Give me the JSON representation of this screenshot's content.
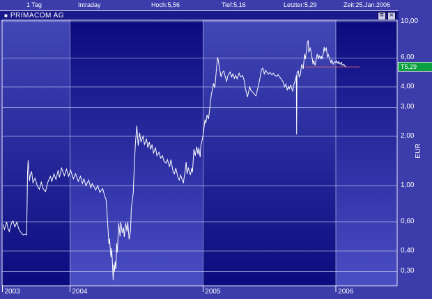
{
  "window": {
    "title": "PRIMACOM AG",
    "title_icon": "■",
    "buttons": {
      "properties": "≡",
      "close": "✕"
    }
  },
  "header": {
    "items": [
      {
        "label": "1 Tag"
      },
      {
        "label": "Intraday"
      },
      {
        "label": "Hoch:5,56"
      },
      {
        "label": "Tief:5,16"
      },
      {
        "label": "Letzter:5,29"
      },
      {
        "label": "Zeit:25.Jan.2006"
      }
    ]
  },
  "last_price_tag": {
    "label": "T5,29",
    "price": 5.29,
    "color": "#0aa041"
  },
  "y_axis_unit": "EUR",
  "colors": {
    "margin_background": "#3c3cab",
    "titlebar_background": "#1a1a8c",
    "band_light": "#4247b6",
    "band_dark": "#0b0b7e",
    "band_light_bottom": "#4b4fc4",
    "gridline": "rgba(205,210,245,0.6)",
    "plot_border": "#e8e8f0",
    "price_line": "#ffffff",
    "reference_line": "#e06a6a",
    "tag_green": "#0aa041"
  },
  "chart_data": {
    "type": "line",
    "title": "PRIMACOM AG",
    "series_name": "PrimaCom AG Kurs (EUR)",
    "y_scale": "log",
    "x_range": [
      2003.49,
      2006.46
    ],
    "y_range": [
      0.245,
      10.2
    ],
    "y_ticks": [
      {
        "value": 10.0,
        "label": "10,00"
      },
      {
        "value": 6.0,
        "label": "6,00"
      },
      {
        "value": 4.0,
        "label": "4,00"
      },
      {
        "value": 3.0,
        "label": "3,00"
      },
      {
        "value": 2.0,
        "label": "2,00"
      },
      {
        "value": 1.0,
        "label": "1,00"
      },
      {
        "value": 0.6,
        "label": "0,60"
      },
      {
        "value": 0.4,
        "label": "0,40"
      },
      {
        "value": 0.3,
        "label": "0,30"
      }
    ],
    "x_ticks": [
      {
        "value": 2003,
        "label": "2003"
      },
      {
        "value": 2004,
        "label": "2004"
      },
      {
        "value": 2005,
        "label": "2005"
      },
      {
        "value": 2006,
        "label": "2006"
      }
    ],
    "reference_line": {
      "price": 5.29,
      "x_start": 2005.764,
      "x_end": 2006.178
    },
    "points": [
      [
        2003.497,
        0.58
      ],
      [
        2003.508,
        0.54
      ],
      [
        2003.524,
        0.6
      ],
      [
        2003.534,
        0.55
      ],
      [
        2003.544,
        0.525
      ],
      [
        2003.56,
        0.59
      ],
      [
        2003.571,
        0.61
      ],
      [
        2003.586,
        0.56
      ],
      [
        2003.602,
        0.6
      ],
      [
        2003.613,
        0.55
      ],
      [
        2003.623,
        0.53
      ],
      [
        2003.639,
        0.51
      ],
      [
        2003.649,
        0.5
      ],
      [
        2003.665,
        0.505
      ],
      [
        2003.675,
        0.5
      ],
      [
        2003.681,
        1.2
      ],
      [
        2003.686,
        1.43
      ],
      [
        2003.696,
        1.07
      ],
      [
        2003.702,
        1.16
      ],
      [
        2003.712,
        1.22
      ],
      [
        2003.722,
        1.04
      ],
      [
        2003.738,
        1.11
      ],
      [
        2003.754,
        1.0
      ],
      [
        2003.77,
        0.95
      ],
      [
        2003.785,
        1.05
      ],
      [
        2003.796,
        0.97
      ],
      [
        2003.806,
        0.94
      ],
      [
        2003.817,
        0.92
      ],
      [
        2003.832,
        1.04
      ],
      [
        2003.853,
        1.14
      ],
      [
        2003.864,
        1.06
      ],
      [
        2003.88,
        1.18
      ],
      [
        2003.895,
        1.09
      ],
      [
        2003.911,
        1.24
      ],
      [
        2003.921,
        1.12
      ],
      [
        2003.937,
        1.28
      ],
      [
        2003.958,
        1.15
      ],
      [
        2003.974,
        1.26
      ],
      [
        2003.99,
        1.14
      ],
      [
        2004.005,
        1.24
      ],
      [
        2004.026,
        1.1
      ],
      [
        2004.042,
        1.18
      ],
      [
        2004.063,
        1.06
      ],
      [
        2004.079,
        1.14
      ],
      [
        2004.094,
        1.03
      ],
      [
        2004.105,
        1.1
      ],
      [
        2004.12,
        1.0
      ],
      [
        2004.141,
        1.08
      ],
      [
        2004.157,
        0.97
      ],
      [
        2004.168,
        1.03
      ],
      [
        2004.194,
        0.94
      ],
      [
        2004.209,
        1.0
      ],
      [
        2004.225,
        0.91
      ],
      [
        2004.246,
        0.96
      ],
      [
        2004.262,
        0.86
      ],
      [
        2004.272,
        0.82
      ],
      [
        2004.278,
        0.7
      ],
      [
        2004.288,
        0.52
      ],
      [
        2004.293,
        0.44
      ],
      [
        2004.298,
        0.475
      ],
      [
        2004.304,
        0.4
      ],
      [
        2004.309,
        0.365
      ],
      [
        2004.314,
        0.415
      ],
      [
        2004.319,
        0.34
      ],
      [
        2004.325,
        0.265
      ],
      [
        2004.33,
        0.33
      ],
      [
        2004.335,
        0.3
      ],
      [
        2004.34,
        0.345
      ],
      [
        2004.346,
        0.31
      ],
      [
        2004.351,
        0.445
      ],
      [
        2004.356,
        0.39
      ],
      [
        2004.367,
        0.59
      ],
      [
        2004.377,
        0.49
      ],
      [
        2004.382,
        0.6
      ],
      [
        2004.393,
        0.515
      ],
      [
        2004.403,
        0.555
      ],
      [
        2004.408,
        0.485
      ],
      [
        2004.419,
        0.59
      ],
      [
        2004.429,
        0.525
      ],
      [
        2004.435,
        0.6
      ],
      [
        2004.445,
        0.47
      ],
      [
        2004.456,
        0.53
      ],
      [
        2004.461,
        0.72
      ],
      [
        2004.471,
        0.84
      ],
      [
        2004.476,
        0.9
      ],
      [
        2004.482,
        1.2
      ],
      [
        2004.487,
        1.45
      ],
      [
        2004.492,
        1.8
      ],
      [
        2004.503,
        2.32
      ],
      [
        2004.513,
        1.75
      ],
      [
        2004.524,
        2.1
      ],
      [
        2004.534,
        1.85
      ],
      [
        2004.55,
        2.0
      ],
      [
        2004.56,
        1.78
      ],
      [
        2004.576,
        1.92
      ],
      [
        2004.586,
        1.7
      ],
      [
        2004.597,
        1.85
      ],
      [
        2004.607,
        1.66
      ],
      [
        2004.618,
        1.78
      ],
      [
        2004.628,
        1.58
      ],
      [
        2004.644,
        1.7
      ],
      [
        2004.654,
        1.52
      ],
      [
        2004.67,
        1.6
      ],
      [
        2004.681,
        1.47
      ],
      [
        2004.696,
        1.52
      ],
      [
        2004.707,
        1.41
      ],
      [
        2004.723,
        1.37
      ],
      [
        2004.733,
        1.44
      ],
      [
        2004.749,
        1.3
      ],
      [
        2004.759,
        1.44
      ],
      [
        2004.775,
        1.22
      ],
      [
        2004.785,
        1.18
      ],
      [
        2004.796,
        1.28
      ],
      [
        2004.812,
        1.12
      ],
      [
        2004.822,
        1.08
      ],
      [
        2004.832,
        1.16
      ],
      [
        2004.848,
        1.06
      ],
      [
        2004.853,
        1.04
      ],
      [
        2004.864,
        1.2
      ],
      [
        2004.874,
        1.39
      ],
      [
        2004.88,
        1.18
      ],
      [
        2004.89,
        1.28
      ],
      [
        2004.906,
        1.16
      ],
      [
        2004.916,
        1.28
      ],
      [
        2004.921,
        1.2
      ],
      [
        2004.932,
        1.67
      ],
      [
        2004.942,
        1.52
      ],
      [
        2004.953,
        1.73
      ],
      [
        2004.963,
        1.55
      ],
      [
        2004.969,
        1.7
      ],
      [
        2004.979,
        1.49
      ],
      [
        2004.984,
        1.76
      ],
      [
        2004.995,
        1.91
      ],
      [
        2005.005,
        2.13
      ],
      [
        2005.01,
        2.34
      ],
      [
        2005.016,
        2.52
      ],
      [
        2005.021,
        2.4
      ],
      [
        2005.031,
        2.7
      ],
      [
        2005.042,
        2.55
      ],
      [
        2005.052,
        3.0
      ],
      [
        2005.063,
        3.6
      ],
      [
        2005.073,
        3.9
      ],
      [
        2005.079,
        4.2
      ],
      [
        2005.089,
        3.95
      ],
      [
        2005.1,
        5.0
      ],
      [
        2005.11,
        6.05
      ],
      [
        2005.115,
        5.85
      ],
      [
        2005.126,
        5.1
      ],
      [
        2005.136,
        4.6
      ],
      [
        2005.147,
        4.9
      ],
      [
        2005.157,
        5.0
      ],
      [
        2005.168,
        4.6
      ],
      [
        2005.178,
        4.33
      ],
      [
        2005.188,
        4.7
      ],
      [
        2005.204,
        4.93
      ],
      [
        2005.215,
        4.6
      ],
      [
        2005.225,
        4.8
      ],
      [
        2005.236,
        4.5
      ],
      [
        2005.246,
        4.7
      ],
      [
        2005.257,
        4.47
      ],
      [
        2005.272,
        4.85
      ],
      [
        2005.283,
        4.6
      ],
      [
        2005.298,
        4.7
      ],
      [
        2005.309,
        4.4
      ],
      [
        2005.319,
        3.9
      ],
      [
        2005.335,
        3.47
      ],
      [
        2005.351,
        4.0
      ],
      [
        2005.361,
        3.8
      ],
      [
        2005.372,
        3.73
      ],
      [
        2005.387,
        3.6
      ],
      [
        2005.398,
        3.52
      ],
      [
        2005.408,
        3.8
      ],
      [
        2005.424,
        4.33
      ],
      [
        2005.44,
        5.1
      ],
      [
        2005.45,
        5.2
      ],
      [
        2005.461,
        4.8
      ],
      [
        2005.471,
        5.05
      ],
      [
        2005.482,
        4.88
      ],
      [
        2005.492,
        4.78
      ],
      [
        2005.503,
        4.9
      ],
      [
        2005.518,
        4.73
      ],
      [
        2005.529,
        4.85
      ],
      [
        2005.539,
        4.7
      ],
      [
        2005.555,
        4.65
      ],
      [
        2005.565,
        4.75
      ],
      [
        2005.576,
        4.6
      ],
      [
        2005.586,
        4.5
      ],
      [
        2005.602,
        4.3
      ],
      [
        2005.613,
        4.0
      ],
      [
        2005.623,
        4.15
      ],
      [
        2005.634,
        3.83
      ],
      [
        2005.644,
        4.02
      ],
      [
        2005.649,
        3.9
      ],
      [
        2005.66,
        4.1
      ],
      [
        2005.67,
        3.85
      ],
      [
        2005.675,
        3.77
      ],
      [
        2005.686,
        4.2
      ],
      [
        2005.696,
        4.4
      ],
      [
        2005.702,
        4.7
      ],
      [
        2005.704,
        2.05
      ],
      [
        2005.707,
        4.9
      ],
      [
        2005.717,
        5.0
      ],
      [
        2005.723,
        4.6
      ],
      [
        2005.733,
        4.75
      ],
      [
        2005.738,
        5.2
      ],
      [
        2005.743,
        5.5
      ],
      [
        2005.754,
        5.15
      ],
      [
        2005.764,
        6.35
      ],
      [
        2005.77,
        5.9
      ],
      [
        2005.78,
        6.8
      ],
      [
        2005.785,
        7.5
      ],
      [
        2005.791,
        7.65
      ],
      [
        2005.796,
        6.5
      ],
      [
        2005.806,
        6.9
      ],
      [
        2005.812,
        6.6
      ],
      [
        2005.822,
        5.9
      ],
      [
        2005.827,
        5.5
      ],
      [
        2005.832,
        5.8
      ],
      [
        2005.843,
        5.4
      ],
      [
        2005.848,
        5.7
      ],
      [
        2005.859,
        6.35
      ],
      [
        2005.864,
        6.1
      ],
      [
        2005.869,
        5.9
      ],
      [
        2005.874,
        6.2
      ],
      [
        2005.885,
        5.95
      ],
      [
        2005.89,
        6.15
      ],
      [
        2005.895,
        5.9
      ],
      [
        2005.906,
        6.5
      ],
      [
        2005.911,
        7.0
      ],
      [
        2005.916,
        6.6
      ],
      [
        2005.927,
        6.9
      ],
      [
        2005.937,
        6.05
      ],
      [
        2005.942,
        6.3
      ],
      [
        2005.953,
        5.9
      ],
      [
        2005.963,
        5.6
      ],
      [
        2005.969,
        5.85
      ],
      [
        2005.979,
        5.5
      ],
      [
        2005.99,
        5.7
      ],
      [
        2006.0,
        5.6
      ],
      [
        2006.005,
        5.75
      ],
      [
        2006.016,
        5.55
      ],
      [
        2006.021,
        5.7
      ],
      [
        2006.031,
        5.5
      ],
      [
        2006.042,
        5.65
      ],
      [
        2006.047,
        5.4
      ],
      [
        2006.058,
        5.5
      ],
      [
        2006.068,
        5.35
      ],
      [
        2006.073,
        5.29
      ]
    ]
  }
}
